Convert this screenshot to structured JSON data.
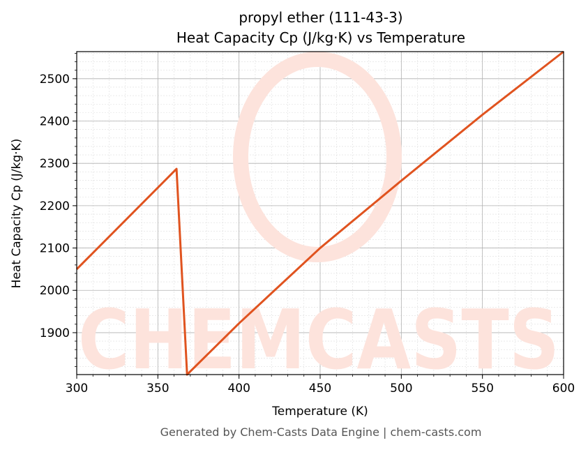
{
  "chart_data": {
    "type": "line",
    "title_line1": "propyl ether (111-43-3)",
    "title_line2": "Heat Capacity Cp (J/kg·K) vs Temperature",
    "xlabel": "Temperature (K)",
    "ylabel": "Heat Capacity Cp (J/kg·K)",
    "xlim": [
      300,
      600
    ],
    "ylim": [
      1801,
      2564
    ],
    "xticks": [
      300,
      350,
      400,
      450,
      500,
      550,
      600
    ],
    "yticks": [
      1900,
      2000,
      2100,
      2200,
      2300,
      2400,
      2500
    ],
    "grid": true,
    "series": [
      {
        "color": "#e0531f",
        "x": [
          300,
          361.5,
          368,
          400,
          450,
          500,
          550,
          600
        ],
        "y": [
          2050,
          2287,
          1801,
          1922,
          2100,
          2259,
          2415,
          2564
        ]
      }
    ]
  },
  "watermark": "CHEMCASTS",
  "footer": "Generated by Chem-Casts Data Engine | chem-casts.com"
}
